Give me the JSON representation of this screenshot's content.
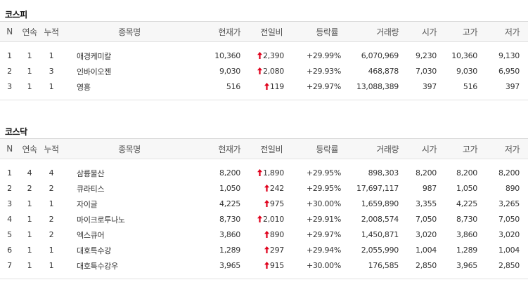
{
  "columns": [
    "N",
    "연속",
    "누적",
    "종목명",
    "현재가",
    "전일비",
    "등락률",
    "거래량",
    "시가",
    "고가",
    "저가"
  ],
  "colors": {
    "up": "#e0001b",
    "header_bg": "#f7f7f7",
    "border": "#e2e2e2"
  },
  "icons": {
    "change_arrow": "up-arrow-icon"
  },
  "kospi": {
    "title": "코스피",
    "rows": [
      {
        "n": "1",
        "consecutive": "1",
        "cumulative": "1",
        "name": "애경케미칼",
        "price": "10,360",
        "change": "2,390",
        "rate": "+29.99%",
        "volume": "6,070,969",
        "open": "9,230",
        "high": "10,360",
        "low": "9,130"
      },
      {
        "n": "2",
        "consecutive": "1",
        "cumulative": "3",
        "name": "인바이오젠",
        "price": "9,030",
        "change": "2,080",
        "rate": "+29.93%",
        "volume": "468,878",
        "open": "7,030",
        "high": "9,030",
        "low": "6,950"
      },
      {
        "n": "3",
        "consecutive": "1",
        "cumulative": "1",
        "name": "영흥",
        "price": "516",
        "change": "119",
        "rate": "+29.97%",
        "volume": "13,088,389",
        "open": "397",
        "high": "516",
        "low": "397"
      }
    ]
  },
  "kosdaq": {
    "title": "코스닥",
    "rows": [
      {
        "n": "1",
        "consecutive": "4",
        "cumulative": "4",
        "name": "삼륭물산",
        "price": "8,200",
        "change": "1,890",
        "rate": "+29.95%",
        "volume": "898,303",
        "open": "8,200",
        "high": "8,200",
        "low": "8,200"
      },
      {
        "n": "2",
        "consecutive": "2",
        "cumulative": "2",
        "name": "큐라티스",
        "price": "1,050",
        "change": "242",
        "rate": "+29.95%",
        "volume": "17,697,117",
        "open": "987",
        "high": "1,050",
        "low": "890"
      },
      {
        "n": "3",
        "consecutive": "1",
        "cumulative": "1",
        "name": "자이글",
        "price": "4,225",
        "change": "975",
        "rate": "+30.00%",
        "volume": "1,659,890",
        "open": "3,355",
        "high": "4,225",
        "low": "3,265"
      },
      {
        "n": "4",
        "consecutive": "1",
        "cumulative": "2",
        "name": "마이크로투나노",
        "price": "8,730",
        "change": "2,010",
        "rate": "+29.91%",
        "volume": "2,008,574",
        "open": "7,050",
        "high": "8,730",
        "low": "7,050"
      },
      {
        "n": "5",
        "consecutive": "1",
        "cumulative": "2",
        "name": "엑스큐어",
        "price": "3,860",
        "change": "890",
        "rate": "+29.97%",
        "volume": "1,450,871",
        "open": "3,020",
        "high": "3,860",
        "low": "3,020"
      },
      {
        "n": "6",
        "consecutive": "1",
        "cumulative": "1",
        "name": "대호특수강",
        "price": "1,289",
        "change": "297",
        "rate": "+29.94%",
        "volume": "2,055,990",
        "open": "1,004",
        "high": "1,289",
        "low": "1,004"
      },
      {
        "n": "7",
        "consecutive": "1",
        "cumulative": "1",
        "name": "대호특수강우",
        "price": "3,965",
        "change": "915",
        "rate": "+30.00%",
        "volume": "176,585",
        "open": "2,850",
        "high": "3,965",
        "low": "2,850"
      }
    ]
  }
}
